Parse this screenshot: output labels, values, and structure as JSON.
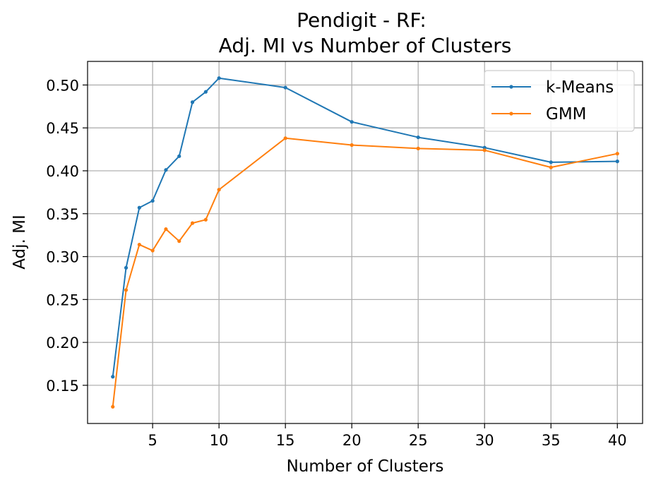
{
  "chart_data": {
    "type": "line",
    "title_line1": "Pendigit - RF:",
    "title_line2": "Adj. MI vs Number of Clusters",
    "xlabel": "Number of Clusters",
    "ylabel": "Adj. MI",
    "xlim": [
      0.1,
      41.9
    ],
    "ylim": [
      0.1055,
      0.5275
    ],
    "xticks": [
      5,
      10,
      15,
      20,
      25,
      30,
      35,
      40
    ],
    "xtick_labels": [
      "5",
      "10",
      "15",
      "20",
      "25",
      "30",
      "35",
      "40"
    ],
    "yticks": [
      0.15,
      0.2,
      0.25,
      0.3,
      0.35,
      0.4,
      0.45,
      0.5
    ],
    "ytick_labels": [
      "0.15",
      "0.20",
      "0.25",
      "0.30",
      "0.35",
      "0.40",
      "0.45",
      "0.50"
    ],
    "grid": true,
    "legend_position": "top-right",
    "x": [
      2,
      3,
      4,
      5,
      6,
      7,
      8,
      9,
      10,
      15,
      20,
      25,
      30,
      35,
      40
    ],
    "series": [
      {
        "name": "k-Means",
        "color": "#1f77b4",
        "values": [
          0.16,
          0.287,
          0.357,
          0.365,
          0.401,
          0.417,
          0.48,
          0.492,
          0.508,
          0.497,
          0.457,
          0.439,
          0.427,
          0.41,
          0.411
        ]
      },
      {
        "name": "GMM",
        "color": "#ff7f0e",
        "values": [
          0.125,
          0.261,
          0.314,
          0.307,
          0.332,
          0.318,
          0.339,
          0.343,
          0.378,
          0.438,
          0.43,
          0.426,
          0.424,
          0.404,
          0.42
        ]
      }
    ]
  }
}
